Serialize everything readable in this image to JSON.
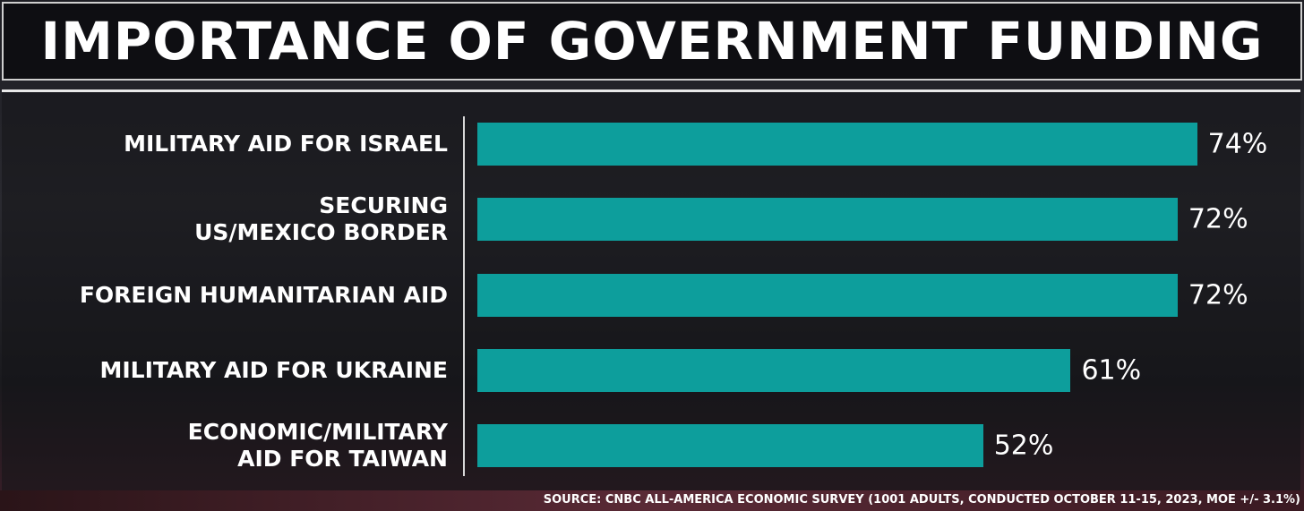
{
  "chart_data": {
    "type": "bar",
    "orientation": "horizontal",
    "title": "IMPORTANCE OF GOVERNMENT FUNDING",
    "categories": [
      "MILITARY AID FOR ISRAEL",
      "SECURING\nUS/MEXICO BORDER",
      "FOREIGN HUMANITARIAN AID",
      "MILITARY AID FOR UKRAINE",
      "ECONOMIC/MILITARY\nAID FOR TAIWAN"
    ],
    "values": [
      74,
      72,
      72,
      61,
      52
    ],
    "value_labels": [
      "74%",
      "72%",
      "72%",
      "61%",
      "52%"
    ],
    "color": "#0d9e9c",
    "xlim": [
      0,
      100
    ],
    "source": "SOURCE: CNBC ALL-AMERICA ECONOMIC SURVEY (1001 ADULTS, CONDUCTED OCTOBER 11-15, 2023, MOE +/- 3.1%)"
  }
}
